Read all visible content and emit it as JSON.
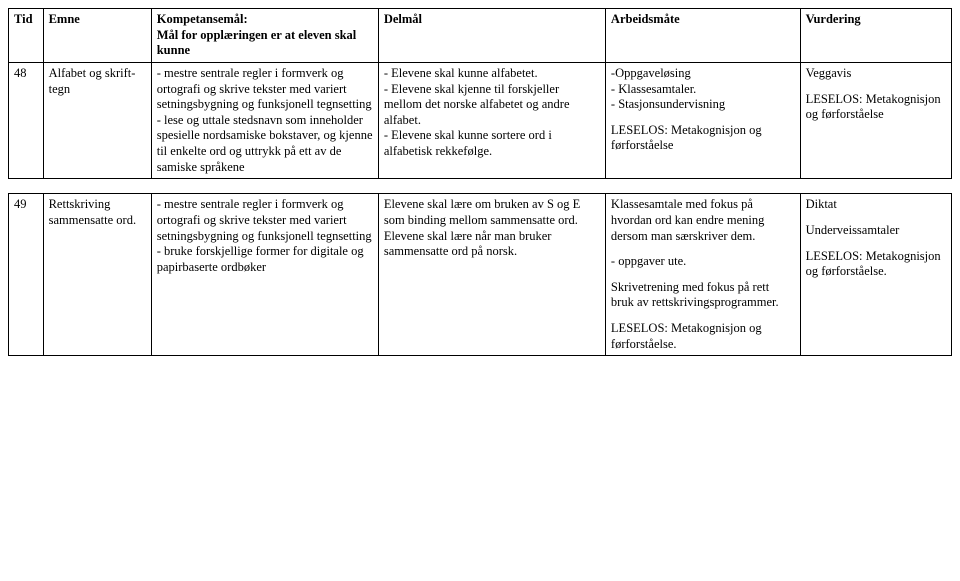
{
  "headers": {
    "tid": "Tid",
    "emne": "Emne",
    "komp": "Kompetansemål:\nMål for opplæringen er at eleven skal kunne",
    "delm": "Delmål",
    "arb": "Arbeidsmåte",
    "vurd": "Vurdering"
  },
  "rows": [
    {
      "tid": "48",
      "emne": "Alfabet og skrift-tegn",
      "komp": "- mestre sentrale regler i formverk og ortografi og skrive tekster med variert setningsbygning og funksjonell tegnsetting\n- lese og uttale stedsnavn som inneholder spesielle nordsamiske bokstaver, og kjenne til enkelte ord og uttrykk på ett av de samiske språkene",
      "delm": "- Elevene skal kunne alfabetet.\n- Elevene skal kjenne til forskjeller mellom det norske alfabetet og andre alfabet.\n- Elevene skal kunne sortere ord i alfabetisk rekkefølge.",
      "arb": "-Oppgaveløsing\n- Klassesamtaler.\n- Stasjonsundervisning\n\nLESELOS: Metakognisjon og førforståelse",
      "vurd": "Veggavis\n\nLESELOS: Metakognisjon og førforståelse"
    },
    {
      "tid": "49",
      "emne": "Rettskriving sammensatte ord.",
      "komp": "- mestre sentrale regler i formverk og ortografi og skrive tekster med variert setningsbygning og funksjonell tegnsetting\n- bruke forskjellige former for digitale og papirbaserte ordbøker",
      "delm": "Elevene skal lære om bruken av S og E som binding mellom sammensatte ord.\nElevene skal lære når man bruker sammensatte ord på norsk.",
      "arb": "Klassesamtale med fokus på hvordan ord kan endre mening dersom man særskriver dem.\n\n- oppgaver ute.\n\nSkrivetrening med fokus på rett bruk av rettskrivingsprogrammer.\n\nLESELOS: Metakognisjon og førforståelse.",
      "vurd": "Diktat\n\nUnderveissamtaler\n\nLESELOS: Metakognisjon og førforståelse."
    }
  ]
}
